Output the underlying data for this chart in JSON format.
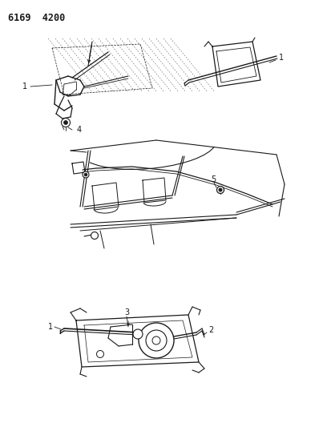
{
  "title": "6169  4200",
  "background_color": "#ffffff",
  "line_color": "#1a1a1a",
  "title_fontsize": 8.5,
  "title_fontweight": "bold",
  "figsize": [
    4.08,
    5.33
  ],
  "dpi": 100
}
